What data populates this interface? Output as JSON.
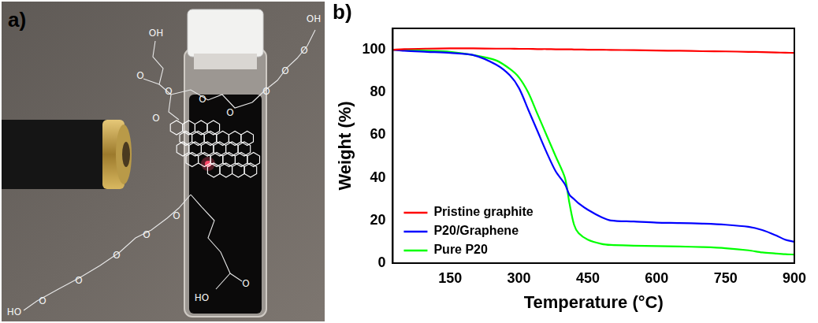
{
  "panel_a": {
    "label": "a)",
    "structure_labels": [
      "OH",
      "O",
      "O",
      "O",
      "O",
      "O",
      "O",
      "O",
      "O",
      "OH",
      "O",
      "O",
      "O",
      "O",
      "O",
      "HO",
      "O",
      "HO"
    ]
  },
  "chart_data": {
    "type": "line",
    "panel_label": "b)",
    "x_label": "Temperature (°C)",
    "y_label": "Weight (%)",
    "x": [
      25,
      50,
      100,
      150,
      200,
      250,
      280,
      300,
      320,
      340,
      360,
      380,
      400,
      410,
      420,
      430,
      450,
      480,
      500,
      550,
      600,
      650,
      700,
      750,
      800,
      830,
      860,
      880,
      900
    ],
    "series": [
      {
        "name": "Pristine graphite",
        "color": "#ff0000",
        "values": [
          100,
          100.3,
          100.5,
          100.6,
          100.6,
          100.5,
          100.5,
          100.4,
          100.4,
          100.3,
          100.3,
          100.2,
          100.2,
          100.2,
          100.1,
          100.1,
          100,
          100,
          99.9,
          99.8,
          99.6,
          99.5,
          99.3,
          99.2,
          99,
          98.9,
          98.7,
          98.6,
          98.5
        ]
      },
      {
        "name": "P20/Graphene",
        "color": "#0000ff",
        "values": [
          100,
          99.5,
          99,
          98.5,
          97.5,
          93,
          88,
          82,
          72,
          62,
          52,
          43,
          37,
          32,
          30,
          28,
          25,
          21.5,
          20,
          19.5,
          19,
          18.8,
          18.5,
          18,
          17,
          15.5,
          13,
          11,
          10
        ]
      },
      {
        "name": "Pure P20",
        "color": "#00ff00",
        "values": [
          100,
          99.8,
          99.5,
          99,
          97.5,
          95,
          91,
          87,
          80,
          70,
          60,
          50,
          40,
          28,
          18,
          14,
          11,
          9,
          8.5,
          8.2,
          8,
          7.8,
          7.5,
          7,
          6,
          5,
          4.5,
          4.2,
          4
        ]
      }
    ],
    "xlim": [
      25,
      900
    ],
    "xticks": [
      150,
      300,
      450,
      600,
      750,
      900
    ],
    "ylim": [
      0,
      110
    ],
    "yticks": [
      0,
      20,
      40,
      60,
      80,
      100
    ],
    "grid": false,
    "legend": "lower left"
  }
}
